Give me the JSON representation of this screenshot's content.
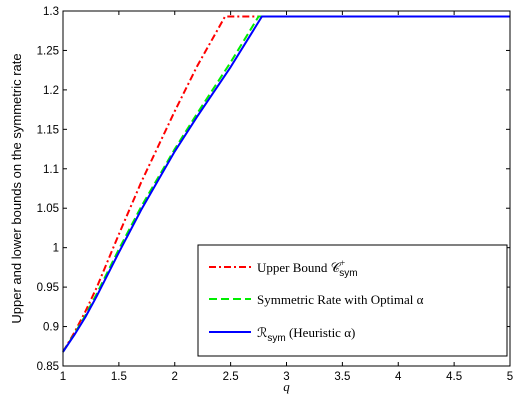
{
  "chart_data": {
    "type": "line",
    "title": "",
    "xlabel": "q",
    "ylabel": "Upper and lower bounds on the symmetric rate",
    "xlim": [
      1,
      5
    ],
    "ylim": [
      0.85,
      1.3
    ],
    "xticks": [
      1,
      1.5,
      2,
      2.5,
      3,
      3.5,
      4,
      4.5,
      5
    ],
    "xtick_labels": [
      "1",
      "1.5",
      "2",
      "2.5",
      "3",
      "3.5",
      "4",
      "4.5",
      "5"
    ],
    "yticks": [
      0.85,
      0.9,
      0.95,
      1,
      1.05,
      1.1,
      1.15,
      1.2,
      1.25,
      1.3
    ],
    "ytick_labels": [
      "0.85",
      "0.9",
      "0.95",
      "1",
      "1.05",
      "1.1",
      "1.15",
      "1.2",
      "1.25",
      "1.3"
    ],
    "grid": false,
    "legend_position": "bottom-right",
    "series": [
      {
        "name": "Upper Bound C_sym^+",
        "legend_label": "Upper Bound 𝒞",
        "legend_sup": "+",
        "legend_sub": "sym",
        "legend_suffix": "",
        "color": "#ff0000",
        "dash": "dashdot",
        "x": [
          1.0,
          1.1,
          1.2,
          1.3,
          1.5,
          1.7,
          2.0,
          2.2,
          2.45,
          2.5,
          5.0
        ],
        "y": [
          0.868,
          0.892,
          0.919,
          0.949,
          1.017,
          1.083,
          1.173,
          1.23,
          1.293,
          1.293,
          1.293
        ]
      },
      {
        "name": "Symmetric Rate with Optimal α",
        "legend_label": "Symmetric Rate with Optimal α",
        "legend_sup": "",
        "legend_sub": "",
        "legend_suffix": "",
        "color": "#00ee00",
        "dash": "dashed",
        "x": [
          1.0,
          1.1,
          1.2,
          1.3,
          1.5,
          1.7,
          2.0,
          2.2,
          2.5,
          2.75,
          5.0
        ],
        "y": [
          0.868,
          0.89,
          0.914,
          0.941,
          0.998,
          1.052,
          1.125,
          1.17,
          1.235,
          1.293,
          1.293
        ]
      },
      {
        "name": "R_sym (Heuristic α)",
        "legend_label": "ℛ",
        "legend_sup": "",
        "legend_sub": "sym",
        "legend_suffix": " (Heuristic α)",
        "color": "#0000ff",
        "dash": "solid",
        "x": [
          1.0,
          1.1,
          1.2,
          1.3,
          1.5,
          1.7,
          2.0,
          2.2,
          2.5,
          2.78,
          5.0
        ],
        "y": [
          0.868,
          0.889,
          0.912,
          0.938,
          0.994,
          1.048,
          1.122,
          1.166,
          1.229,
          1.293,
          1.293
        ]
      }
    ]
  }
}
